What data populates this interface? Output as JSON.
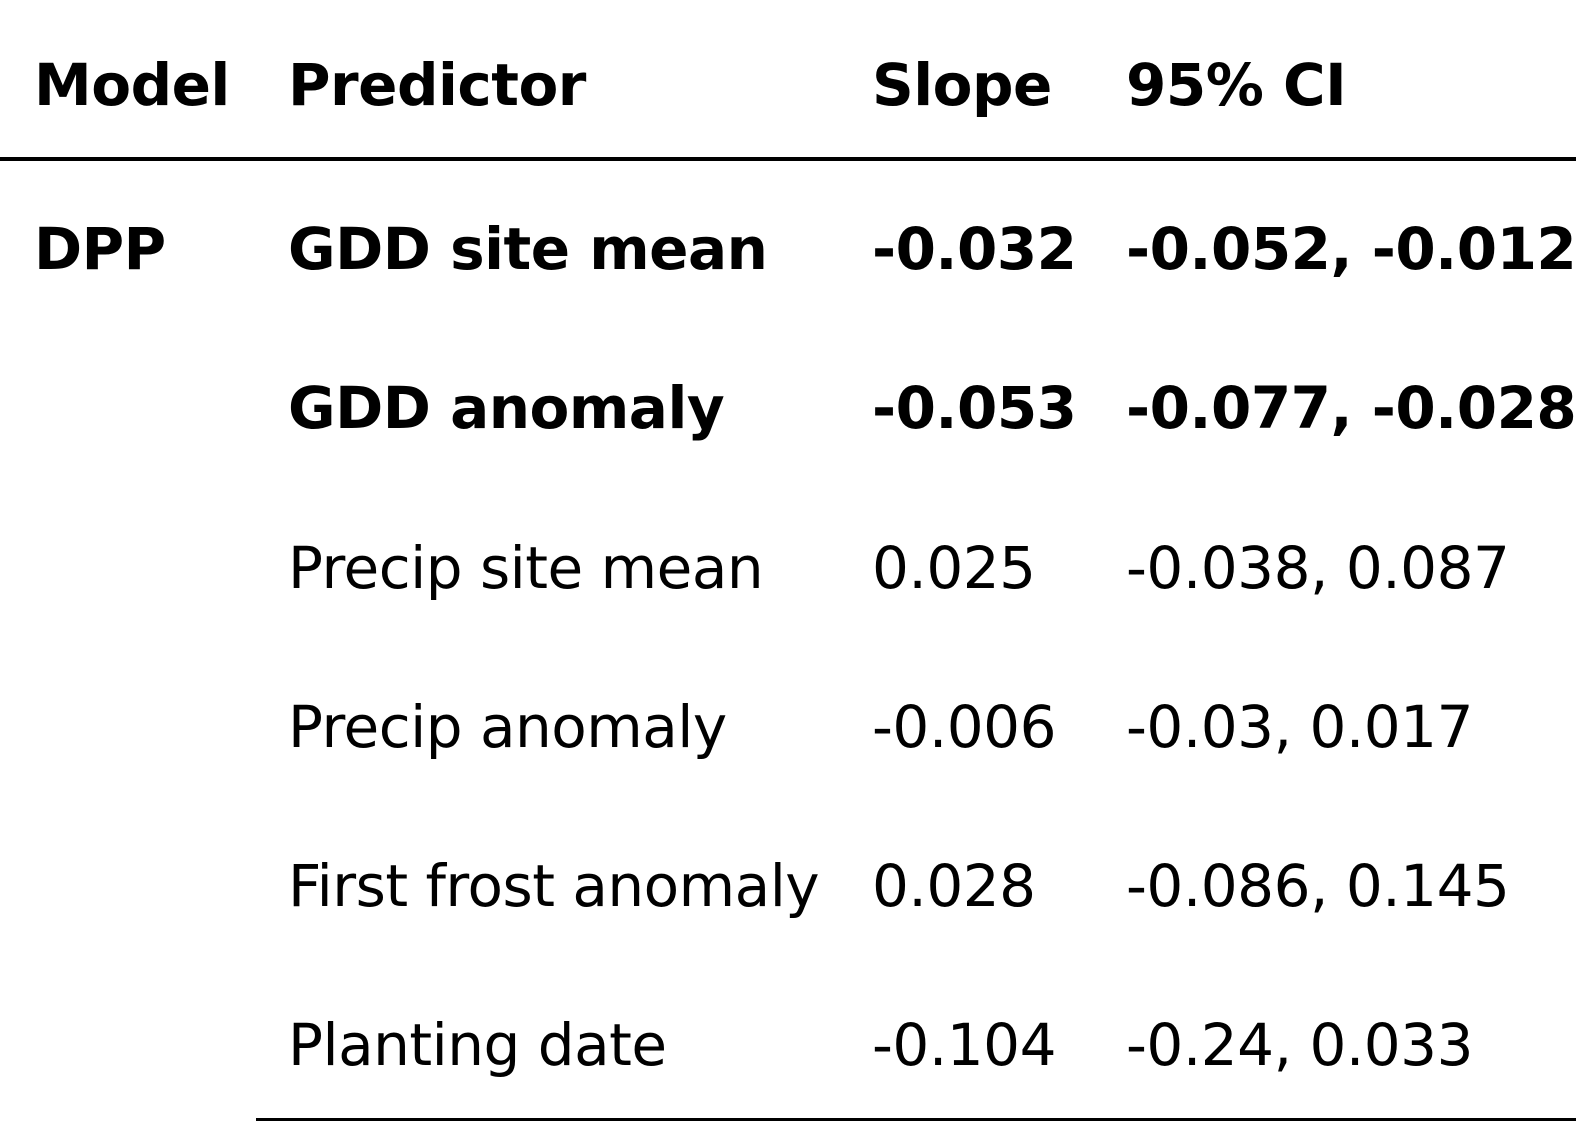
{
  "table": {
    "headers": {
      "model": "Model",
      "predictor": "Predictor",
      "slope": "Slope",
      "ci": "95% CI"
    },
    "rows": [
      {
        "model": "DPP",
        "predictor": "GDD site mean",
        "slope": "-0.032",
        "ci": "-0.052, -0.012",
        "bold": true
      },
      {
        "model": "",
        "predictor": "GDD anomaly",
        "slope": "-0.053",
        "ci": "-0.077, -0.028",
        "bold": true
      },
      {
        "model": "",
        "predictor": "Precip site mean",
        "slope": "0.025",
        "ci": "-0.038, 0.087",
        "bold": false
      },
      {
        "model": "",
        "predictor": "Precip anomaly",
        "slope": "-0.006",
        "ci": "-0.03, 0.017",
        "bold": false
      },
      {
        "model": "",
        "predictor": "First frost anomaly",
        "slope": "0.028",
        "ci": "-0.086, 0.145",
        "bold": false
      },
      {
        "model": "",
        "predictor": "Planting date",
        "slope": "-0.104",
        "ci": "-0.24, 0.033",
        "bold": false
      }
    ]
  }
}
